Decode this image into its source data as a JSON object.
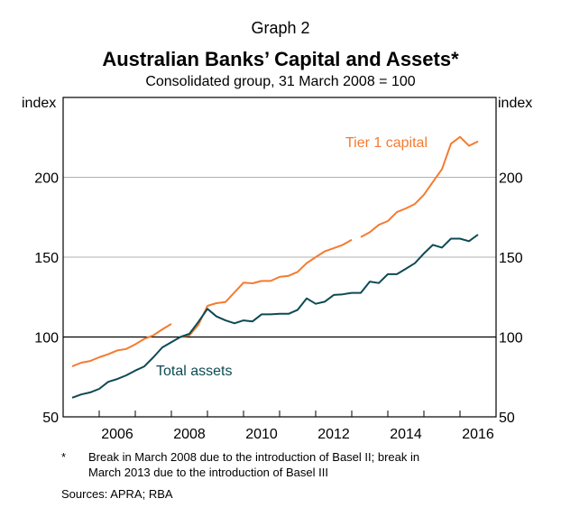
{
  "header": {
    "graph_number": "Graph 2",
    "title": "Australian Banks’ Capital and Assets*",
    "subtitle": "Consolidated group, 31 March 2008 = 100"
  },
  "chart_data": {
    "type": "line",
    "title": "Australian Banks’ Capital and Assets*",
    "subtitle": "Consolidated group, 31 March 2008 = 100",
    "ylabel_left": "index",
    "ylabel_right": "index",
    "xlim": [
      2005,
      2017
    ],
    "ylim": [
      50,
      250
    ],
    "x_ticks": [
      2006,
      2008,
      2010,
      2012,
      2014,
      2016
    ],
    "y_ticks": [
      50,
      100,
      150,
      200
    ],
    "grid": true,
    "x_start": 2005.25,
    "x_step": 0.25,
    "series": [
      {
        "name": "Tier 1 capital",
        "color": "#f47b30",
        "label_position": "top-right",
        "segments": [
          {
            "start": 2005.25,
            "values": [
              81.6,
              83.9,
              85,
              87.3,
              89.2,
              91.6,
              92.5,
              95.4,
              98.8,
              101,
              104.8,
              108.2
            ]
          },
          {
            "start": 2008.25,
            "values": [
              100,
              101,
              107.6,
              119.5,
              121.2,
              121.9,
              127.9,
              134,
              133.6,
              135.1,
              135.1,
              137.6,
              138.3,
              140.8,
              146.2,
              150,
              153.6,
              155.6,
              157.7,
              160.9
            ]
          },
          {
            "start": 2013.25,
            "values": [
              162.6,
              165.6,
              170.2,
              172.6,
              178.2,
              180.5,
              183.3,
              189.1,
              197.1,
              205,
              221,
              225.3,
              219.7,
              222.5
            ]
          }
        ]
      },
      {
        "name": "Total assets",
        "color": "#0d4a55",
        "label_position": "bottom-left",
        "segments": [
          {
            "start": 2005.25,
            "values": [
              62,
              64,
              65.3,
              67.5,
              71.9,
              73.7,
              76,
              79,
              81.6,
              87.3,
              93.5,
              96.7,
              100,
              102,
              109.5,
              117.6,
              112.9,
              110.4,
              108.6,
              110.4,
              109.8,
              114.2,
              114.2,
              114.5,
              114.5,
              117,
              124.2,
              120.8,
              122.1,
              126.3,
              126.7,
              127.6,
              127.6,
              134.7,
              133.8,
              139.3,
              139.3,
              142.7,
              146.2,
              152.3,
              157.7,
              156,
              161.6,
              161.6,
              160,
              164.1
            ]
          }
        ]
      }
    ]
  },
  "footnotes": {
    "marker": "*",
    "line1": "Break in March 2008 due to the introduction of Basel II; break in",
    "line2": "March 2013 due to the introduction of Basel III",
    "sources": "Sources:   APRA; RBA"
  }
}
